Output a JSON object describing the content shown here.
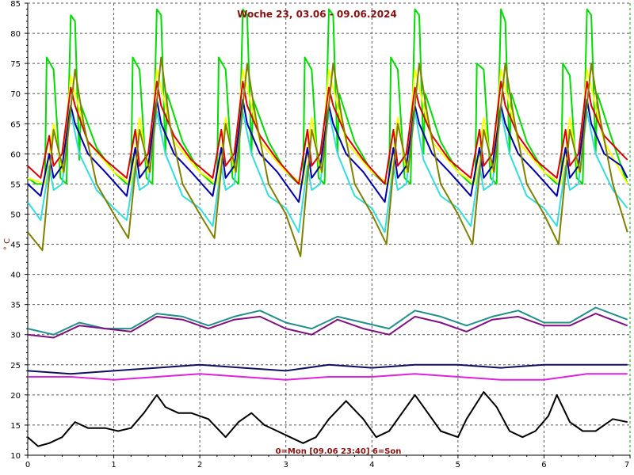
{
  "chart_data": {
    "type": "line",
    "title": "Woche 23, 03.06 - 09.06.2024",
    "footer": "0=Mon [09.06 23:40] 6=Son",
    "xlabel": "",
    "ylabel": "° C",
    "xlim": [
      0,
      7
    ],
    "ylim": [
      10,
      85
    ],
    "xticks": [
      0,
      1,
      2,
      3,
      4,
      5,
      6,
      7
    ],
    "yticks": [
      10,
      15,
      20,
      25,
      30,
      35,
      40,
      45,
      50,
      55,
      60,
      65,
      70,
      75,
      80,
      85
    ],
    "grid": true,
    "series": [
      {
        "color": "#00dd00",
        "x": [
          0,
          0.1,
          0.2,
          0.22,
          0.3,
          0.38,
          0.45,
          0.5,
          0.55,
          0.6,
          0.62,
          0.8,
          1.0,
          1.15,
          1.2,
          1.22,
          1.3,
          1.38,
          1.45,
          1.5,
          1.55,
          1.6,
          1.62,
          1.8,
          2.0,
          2.15,
          2.2,
          2.22,
          2.3,
          2.38,
          2.45,
          2.5,
          2.55,
          2.6,
          2.62,
          2.8,
          3.0,
          3.15,
          3.2,
          3.22,
          3.3,
          3.38,
          3.45,
          3.5,
          3.55,
          3.6,
          3.62,
          3.8,
          4.0,
          4.15,
          4.2,
          4.22,
          4.3,
          4.38,
          4.45,
          4.5,
          4.55,
          4.6,
          4.62,
          4.8,
          5.0,
          5.15,
          5.2,
          5.22,
          5.3,
          5.38,
          5.45,
          5.5,
          5.55,
          5.6,
          5.62,
          5.8,
          6.0,
          6.15,
          6.2,
          6.22,
          6.3,
          6.38,
          6.45,
          6.5,
          6.55,
          6.6,
          6.62,
          6.8,
          6.97
        ],
        "y": [
          56,
          55,
          55,
          76,
          74,
          56,
          55,
          83,
          82,
          59,
          68,
          61,
          57,
          55,
          55,
          76,
          74,
          56,
          55,
          84,
          83,
          60,
          70,
          62,
          57,
          55,
          55,
          76,
          74,
          56,
          55,
          84,
          83,
          60,
          69,
          62,
          57,
          55,
          55,
          76,
          74,
          56,
          55,
          84,
          83,
          60,
          70,
          62,
          57,
          55,
          55,
          76,
          74,
          56,
          55,
          84,
          83,
          60,
          70,
          62,
          57,
          55,
          55,
          75,
          74,
          56,
          55,
          84,
          82,
          60,
          70,
          62,
          57,
          55,
          55,
          75,
          73,
          56,
          55,
          84,
          83,
          60,
          70,
          62,
          55
        ]
      },
      {
        "color": "#ffff00",
        "x": [
          0,
          0.2,
          0.3,
          0.4,
          0.5,
          0.55,
          0.7,
          1.0,
          1.2,
          1.3,
          1.4,
          1.5,
          1.55,
          1.7,
          2.0,
          2.2,
          2.3,
          2.4,
          2.5,
          2.55,
          2.7,
          3.0,
          3.2,
          3.3,
          3.4,
          3.5,
          3.55,
          3.7,
          4.0,
          4.2,
          4.3,
          4.4,
          4.5,
          4.55,
          4.7,
          5.0,
          5.2,
          5.3,
          5.4,
          5.5,
          5.55,
          5.7,
          6.0,
          6.2,
          6.3,
          6.4,
          6.5,
          6.55,
          6.7,
          6.97
        ],
        "y": [
          56,
          55,
          65,
          57,
          73,
          70,
          62,
          57,
          55,
          66,
          57,
          74,
          71,
          62,
          57,
          55,
          66,
          57,
          74,
          71,
          62,
          57,
          55,
          66,
          57,
          74,
          71,
          62,
          57,
          55,
          66,
          57,
          74,
          71,
          62,
          57,
          55,
          66,
          57,
          74,
          71,
          62,
          57,
          55,
          66,
          57,
          74,
          71,
          62,
          55
        ]
      },
      {
        "color": "#dd0000",
        "x": [
          0,
          0.15,
          0.25,
          0.3,
          0.4,
          0.5,
          0.55,
          0.7,
          0.9,
          1.15,
          1.25,
          1.3,
          1.4,
          1.5,
          1.55,
          1.7,
          1.9,
          2.15,
          2.25,
          2.3,
          2.4,
          2.5,
          2.55,
          2.7,
          2.9,
          3.15,
          3.25,
          3.3,
          3.4,
          3.5,
          3.55,
          3.7,
          3.9,
          4.15,
          4.25,
          4.3,
          4.4,
          4.5,
          4.55,
          4.7,
          4.9,
          5.15,
          5.25,
          5.3,
          5.4,
          5.5,
          5.55,
          5.7,
          5.9,
          6.15,
          6.25,
          6.3,
          6.4,
          6.5,
          6.55,
          6.7,
          6.9,
          6.97
        ],
        "y": [
          58,
          56,
          63,
          58,
          60,
          71,
          68,
          62,
          59,
          56,
          64,
          58,
          60,
          72,
          68,
          63,
          59,
          56,
          64,
          58,
          60,
          72,
          68,
          63,
          59,
          55,
          64,
          58,
          60,
          71,
          68,
          63,
          59,
          55,
          64,
          58,
          60,
          71,
          68,
          63,
          59,
          56,
          64,
          58,
          60,
          72,
          68,
          63,
          59,
          56,
          64,
          58,
          60,
          72,
          68,
          63,
          60,
          59
        ]
      },
      {
        "color": "#0000aa",
        "x": [
          0,
          0.15,
          0.25,
          0.3,
          0.4,
          0.5,
          0.55,
          0.7,
          0.9,
          1.15,
          1.25,
          1.3,
          1.4,
          1.5,
          1.55,
          1.7,
          1.9,
          2.15,
          2.25,
          2.3,
          2.4,
          2.5,
          2.55,
          2.7,
          2.9,
          3.15,
          3.25,
          3.3,
          3.4,
          3.5,
          3.55,
          3.7,
          3.9,
          4.15,
          4.25,
          4.3,
          4.4,
          4.5,
          4.55,
          4.7,
          4.9,
          5.15,
          5.25,
          5.3,
          5.4,
          5.5,
          5.55,
          5.7,
          5.9,
          6.15,
          6.25,
          6.3,
          6.4,
          6.5,
          6.55,
          6.7,
          6.9,
          6.97
        ],
        "y": [
          55,
          53,
          60,
          56,
          58,
          68,
          65,
          60,
          57,
          53,
          61,
          56,
          58,
          69,
          65,
          60,
          57,
          53,
          61,
          56,
          58,
          69,
          65,
          60,
          57,
          52,
          61,
          56,
          58,
          68,
          65,
          60,
          57,
          52,
          61,
          56,
          58,
          68,
          65,
          60,
          57,
          53,
          61,
          56,
          58,
          68,
          65,
          60,
          57,
          53,
          61,
          56,
          58,
          69,
          65,
          60,
          58,
          56
        ]
      },
      {
        "color": "#33dddd",
        "x": [
          0,
          0.15,
          0.25,
          0.3,
          0.4,
          0.5,
          0.6,
          0.8,
          1.0,
          1.15,
          1.25,
          1.3,
          1.4,
          1.5,
          1.6,
          1.8,
          2.0,
          2.15,
          2.25,
          2.3,
          2.4,
          2.5,
          2.6,
          2.8,
          3.0,
          3.15,
          3.25,
          3.3,
          3.4,
          3.5,
          3.6,
          3.8,
          4.0,
          4.15,
          4.25,
          4.3,
          4.4,
          4.5,
          4.6,
          4.8,
          5.0,
          5.15,
          5.25,
          5.3,
          5.4,
          5.5,
          5.6,
          5.8,
          6.0,
          6.15,
          6.25,
          6.3,
          6.4,
          6.5,
          6.6,
          6.8,
          6.97
        ],
        "y": [
          52,
          49,
          58,
          54,
          55,
          67,
          60,
          54,
          51,
          49,
          58,
          54,
          55,
          67,
          60,
          53,
          51,
          48,
          58,
          54,
          55,
          67,
          60,
          53,
          51,
          47,
          58,
          54,
          55,
          67,
          60,
          53,
          51,
          47,
          58,
          54,
          55,
          67,
          59,
          53,
          51,
          48,
          58,
          54,
          55,
          67,
          60,
          53,
          51,
          48,
          58,
          54,
          55,
          67,
          60,
          54,
          51
        ]
      },
      {
        "color": "#808000",
        "x": [
          0,
          0.17,
          0.3,
          0.42,
          0.55,
          0.65,
          0.8,
          1.0,
          1.17,
          1.3,
          1.42,
          1.55,
          1.65,
          1.8,
          2.0,
          2.17,
          2.3,
          2.42,
          2.55,
          2.65,
          2.8,
          3.0,
          3.17,
          3.3,
          3.42,
          3.55,
          3.65,
          3.8,
          4.0,
          4.17,
          4.3,
          4.42,
          4.55,
          4.65,
          4.8,
          5.0,
          5.17,
          5.3,
          5.42,
          5.55,
          5.65,
          5.8,
          6.0,
          6.17,
          6.3,
          6.42,
          6.55,
          6.65,
          6.8,
          6.97
        ],
        "y": [
          47,
          44,
          64,
          57,
          74,
          65,
          55,
          50,
          46,
          64,
          57,
          76,
          65,
          55,
          50,
          46,
          65,
          57,
          75,
          66,
          55,
          50,
          43,
          64,
          57,
          75,
          66,
          55,
          50,
          45,
          65,
          57,
          75,
          66,
          55,
          50,
          45,
          64,
          57,
          75,
          66,
          55,
          50,
          45,
          64,
          57,
          75,
          66,
          55,
          47
        ]
      },
      {
        "color": "#20908a",
        "x": [
          0,
          0.3,
          0.6,
          0.9,
          1.2,
          1.5,
          1.8,
          2.1,
          2.4,
          2.7,
          3.0,
          3.3,
          3.6,
          3.9,
          4.2,
          4.5,
          4.8,
          5.1,
          5.4,
          5.7,
          6.0,
          6.3,
          6.6,
          6.97
        ],
        "y": [
          31,
          30,
          32,
          31,
          31,
          33.5,
          33,
          31.5,
          33,
          34,
          32,
          31,
          33,
          32,
          31,
          34,
          33,
          31.5,
          33,
          34,
          32,
          32,
          34.5,
          32.5
        ]
      },
      {
        "color": "#801080",
        "x": [
          0,
          0.3,
          0.6,
          0.9,
          1.2,
          1.5,
          1.8,
          2.1,
          2.4,
          2.7,
          3.0,
          3.3,
          3.6,
          3.9,
          4.2,
          4.5,
          4.8,
          5.1,
          5.4,
          5.7,
          6.0,
          6.3,
          6.6,
          6.97
        ],
        "y": [
          30,
          29.5,
          31.5,
          31,
          30.5,
          33,
          32.5,
          31,
          32.5,
          33,
          31,
          30,
          32.5,
          31,
          30,
          33,
          32,
          30.5,
          32.5,
          33,
          31.5,
          31.5,
          33.5,
          31.5
        ]
      },
      {
        "color": "#101060",
        "x": [
          0,
          0.5,
          1.0,
          1.5,
          2.0,
          2.5,
          3.0,
          3.5,
          4.0,
          4.5,
          5.0,
          5.5,
          6.0,
          6.5,
          6.97
        ],
        "y": [
          24,
          23.5,
          24,
          24.5,
          25,
          24.5,
          24,
          25,
          24.5,
          25,
          25,
          24.5,
          25,
          25,
          25
        ]
      },
      {
        "color": "#dd22dd",
        "x": [
          0,
          0.5,
          1.0,
          1.5,
          2.0,
          2.5,
          3.0,
          3.5,
          4.0,
          4.5,
          5.0,
          5.5,
          6.0,
          6.5,
          6.97
        ],
        "y": [
          23,
          23,
          22.5,
          23,
          23.5,
          23,
          22.5,
          23,
          23,
          23.5,
          23,
          22.5,
          22.5,
          23.5,
          23.5
        ]
      },
      {
        "color": "#000000",
        "x": [
          0,
          0.12,
          0.25,
          0.4,
          0.55,
          0.7,
          0.9,
          1.05,
          1.2,
          1.35,
          1.5,
          1.6,
          1.75,
          1.9,
          2.1,
          2.3,
          2.45,
          2.6,
          2.75,
          2.9,
          3.05,
          3.2,
          3.35,
          3.5,
          3.7,
          3.9,
          4.05,
          4.2,
          4.35,
          4.5,
          4.65,
          4.8,
          5.0,
          5.1,
          5.3,
          5.45,
          5.6,
          5.75,
          5.9,
          6.05,
          6.15,
          6.3,
          6.45,
          6.6,
          6.8,
          6.97
        ],
        "y": [
          13,
          11.5,
          12,
          13,
          15.5,
          14.5,
          14.5,
          14,
          14.5,
          17,
          20,
          18,
          17,
          17,
          16,
          13,
          15.5,
          17,
          15,
          14,
          13,
          12,
          13,
          16,
          19,
          16,
          13,
          14,
          17,
          20,
          17,
          14,
          13,
          16,
          20.5,
          18,
          14,
          13,
          14,
          16.5,
          20,
          15.5,
          14,
          14,
          16,
          15.5
        ]
      }
    ]
  }
}
